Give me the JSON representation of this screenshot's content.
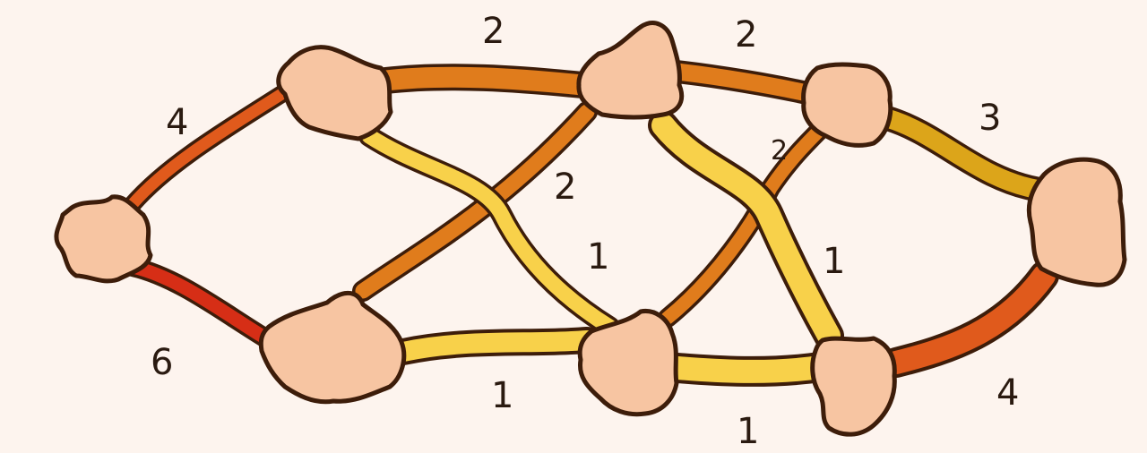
{
  "graph": {
    "nodes": [
      {
        "id": "A",
        "name": "left"
      },
      {
        "id": "B",
        "name": "upper-left"
      },
      {
        "id": "C",
        "name": "lower-left"
      },
      {
        "id": "D",
        "name": "upper-middle"
      },
      {
        "id": "E",
        "name": "lower-middle"
      },
      {
        "id": "F",
        "name": "upper-right"
      },
      {
        "id": "G",
        "name": "lower-right"
      },
      {
        "id": "H",
        "name": "right"
      }
    ],
    "edges": [
      {
        "from": "A",
        "to": "B",
        "weight": "4"
      },
      {
        "from": "A",
        "to": "C",
        "weight": "6"
      },
      {
        "from": "B",
        "to": "D",
        "weight": "2"
      },
      {
        "from": "B",
        "to": "E",
        "weight": "1"
      },
      {
        "from": "C",
        "to": "D",
        "weight": "2"
      },
      {
        "from": "C",
        "to": "E",
        "weight": "1"
      },
      {
        "from": "D",
        "to": "F",
        "weight": "2"
      },
      {
        "from": "D",
        "to": "G",
        "weight": "1"
      },
      {
        "from": "E",
        "to": "F",
        "weight": "2"
      },
      {
        "from": "E",
        "to": "G",
        "weight": "1"
      },
      {
        "from": "F",
        "to": "H",
        "weight": "3"
      },
      {
        "from": "G",
        "to": "H",
        "weight": "4"
      }
    ]
  },
  "colors": {
    "background": "#fdf4ee",
    "node_fill": "#f7c5a2",
    "outline": "#3d1d0a",
    "weight_1": "#f8d14a",
    "weight_2": "#e07c1c",
    "weight_3": "#dca51a",
    "weight_4": "#e05a1c",
    "weight_6": "#d62e16"
  }
}
